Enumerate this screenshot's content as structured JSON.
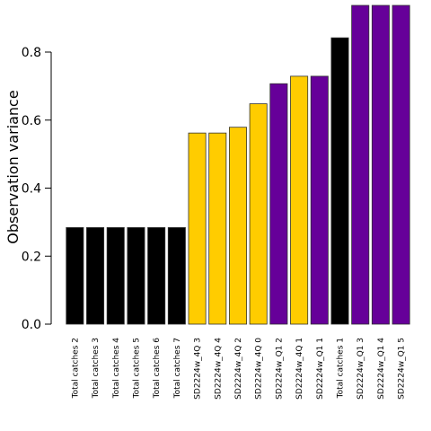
{
  "chart_data": {
    "type": "bar",
    "title": "",
    "xlabel": "",
    "ylabel": "Observation variance",
    "ylim": [
      0,
      0.93
    ],
    "yticks": [
      0.0,
      0.2,
      0.4,
      0.6,
      0.8
    ],
    "ytick_labels": [
      "0.0",
      "0.2",
      "0.4",
      "0.6",
      "0.8"
    ],
    "grid": false,
    "legend": "none",
    "categories": [
      "Total catches 2",
      "Total catches 3",
      "Total catches 4",
      "Total catches 5",
      "Total catches 6",
      "Total catches 7",
      "SD2224w_4Q 3",
      "SD2224w_4Q 4",
      "SD2224w_4Q 2",
      "SD2224w_4Q 0",
      "SD2224w_Q1 2",
      "SD2224w_4Q 1",
      "SD2224w_Q1 1",
      "Total catches 1",
      "SD2224w_Q1 3",
      "SD2224w_Q1 4",
      "SD2224w_Q1 5"
    ],
    "values": [
      0.284,
      0.284,
      0.284,
      0.284,
      0.284,
      0.284,
      0.562,
      0.562,
      0.579,
      0.648,
      0.707,
      0.729,
      0.729,
      0.842,
      0.939,
      0.939,
      0.939
    ],
    "bar_colors": [
      "#000000",
      "#000000",
      "#000000",
      "#000000",
      "#000000",
      "#000000",
      "#FFCC00",
      "#FFCC00",
      "#FFCC00",
      "#FFCC00",
      "#660099",
      "#FFCC00",
      "#660099",
      "#000000",
      "#660099",
      "#660099",
      "#660099"
    ],
    "bar_outline": "#333333"
  }
}
